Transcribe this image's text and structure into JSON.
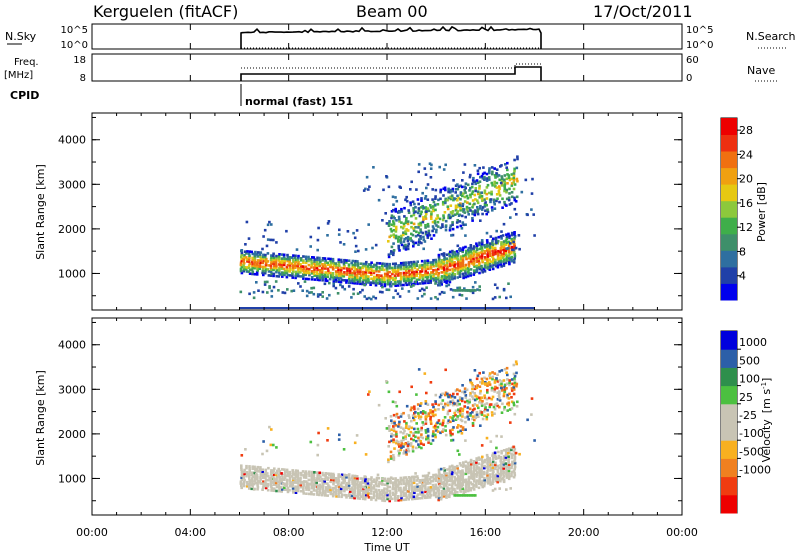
{
  "header": {
    "station": "Kerguelen (fitACF)",
    "beam": "Beam 00",
    "date": "17/Oct/2011"
  },
  "noise_panel": {
    "left_label": "N.Sky",
    "left_ticks": [
      "10^5",
      "10^0"
    ],
    "right_ticks": [
      "10^5",
      "10^0"
    ],
    "right_label": "N.Search"
  },
  "freq_panel": {
    "left_label_1": "Freq.",
    "left_label_2": "[MHz]",
    "left_ticks": [
      "18",
      "8"
    ],
    "right_ticks": [
      "60",
      "0"
    ],
    "right_label": "Nave"
  },
  "cpid": {
    "label": "CPID",
    "mode": "normal (fast) 151"
  },
  "colors": {
    "power_scale": [
      "#0000ee",
      "#2040a8",
      "#2e6fa0",
      "#3e8f6a",
      "#3fae4a",
      "#8cc83c",
      "#e6c812",
      "#f0a010",
      "#f07010",
      "#ee3010",
      "#ee0000"
    ],
    "velocity_scale": [
      "#ee0000",
      "#f03c10",
      "#f08020",
      "#f8b020",
      "#c8c4b4",
      "#c8c4b4",
      "#4cc040",
      "#2e8f4c",
      "#2c5fa8",
      "#0000dd"
    ],
    "ground_scatter": "#c8c4b4"
  },
  "chart_data": [
    {
      "type": "heatmap",
      "panel": "power",
      "xlabel": "",
      "ylabel": "Slant Range [km]",
      "xlim": [
        "00:00",
        "24:00"
      ],
      "ylim": [
        180,
        4600
      ],
      "yticks": [
        "1000",
        "2000",
        "3000",
        "4000"
      ],
      "colorbar": {
        "label": "Power [dB]",
        "ticks": [
          "4",
          "8",
          "12",
          "16",
          "20",
          "24",
          "28"
        ],
        "range": [
          0,
          30
        ]
      },
      "data_window": [
        "06:00",
        "18:00"
      ],
      "features": [
        {
          "name": "main band",
          "start": "06:00",
          "end": "17:00",
          "range_km_start": 1300,
          "range_km_min": 1000,
          "range_km_end": 1600,
          "peak_power_db": 28
        },
        {
          "name": "upper band",
          "start": "12:00",
          "end": "17:00",
          "range_km_start": 1900,
          "range_km_end": 3300,
          "peak_power_db": 18
        }
      ]
    },
    {
      "type": "heatmap",
      "panel": "velocity",
      "xlabel": "Time UT",
      "ylabel": "Slant Range [km]",
      "xlim": [
        "00:00",
        "24:00"
      ],
      "ylim": [
        180,
        4600
      ],
      "xticks": [
        "00:00",
        "04:00",
        "08:00",
        "12:00",
        "16:00",
        "20:00",
        "00:00"
      ],
      "yticks": [
        "1000",
        "2000",
        "3000",
        "4000"
      ],
      "colorbar": {
        "label": "Velocity",
        "unit": "[m s",
        "unit_exp": "-1",
        "unit_close": "]",
        "ticks": [
          "1000",
          "500",
          "100",
          "25",
          "-25",
          "-100",
          "-500",
          "-1000"
        ]
      },
      "data_window": [
        "06:00",
        "18:00"
      ],
      "features": [
        {
          "name": "ground scatter band",
          "start": "06:00",
          "end": "17:00",
          "range_km_start": 1000,
          "range_km_end": 1500
        },
        {
          "name": "ionospheric echoes",
          "start": "12:00",
          "end": "17:00",
          "range_km_start": 1800,
          "range_km_end": 3300
        }
      ]
    }
  ]
}
